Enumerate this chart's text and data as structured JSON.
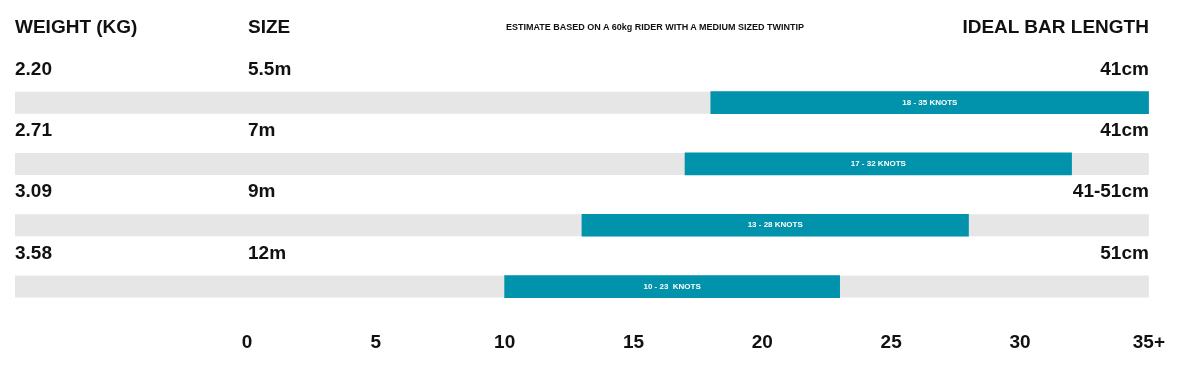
{
  "chart_data": {
    "type": "bar",
    "orientation": "horizontal",
    "title": "ESTIMATE BASED ON A 60kg RIDER WITH A MEDIUM SIZED TWINTIP",
    "ylabel": "SIZE",
    "categories": [
      "5.5m",
      "7m",
      "9m",
      "12m"
    ],
    "base": [
      18,
      17,
      13,
      10
    ],
    "values": [
      17,
      15,
      15,
      13
    ],
    "color": "#0093ab",
    "xlim": [
      -9,
      35
    ],
    "xticks": [
      0,
      5,
      10,
      15,
      20,
      25,
      30,
      {
        "value": 35,
        "label": "35+"
      }
    ],
    "grid": false,
    "legend": false,
    "annotations": [
      "WEIGHT (KG)",
      "IDEAL BAR LENGTH",
      "2.20",
      "41cm",
      "18 - 35 KNOTS",
      "2.71",
      "41cm",
      "17 - 32 KNOTS",
      "3.09",
      "41-51cm",
      "13 - 28 KNOTS",
      "3.58",
      "51cm",
      "10 - 23  KNOTS"
    ]
  }
}
